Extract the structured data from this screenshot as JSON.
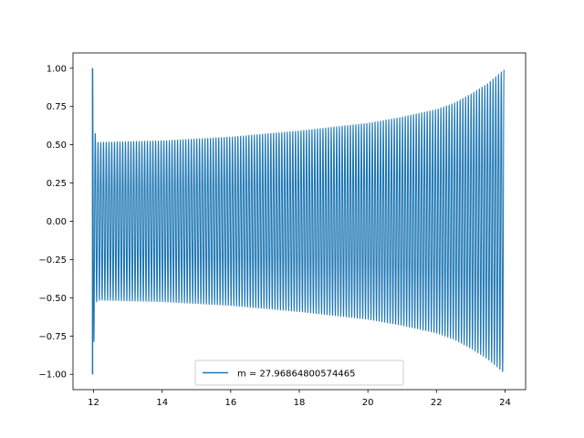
{
  "chart_data": {
    "type": "line",
    "title": "",
    "xlabel": "",
    "ylabel": "",
    "xlim": [
      11.4,
      24.6
    ],
    "ylim": [
      -1.1,
      1.1
    ],
    "x_ticks": [
      12,
      14,
      16,
      18,
      20,
      22,
      24
    ],
    "x_tick_labels": [
      "12",
      "14",
      "16",
      "18",
      "20",
      "22",
      "24"
    ],
    "y_ticks": [
      1.0,
      0.75,
      0.5,
      0.25,
      0.0,
      -0.25,
      -0.5,
      -0.75,
      -1.0
    ],
    "y_tick_labels": [
      "1.00",
      "0.75",
      "0.50",
      "0.25",
      "0.00",
      "−0.25",
      "−0.50",
      "−0.75",
      "−1.00"
    ],
    "grid": false,
    "legend_position": "bottom-center",
    "series": [
      {
        "name": "m = 27.96864800574465",
        "color": "#1f77b4",
        "x_start": 11.97,
        "x_end": 23.97,
        "oscillation_cycles": 150,
        "envelope_x": [
          11.97,
          12.05,
          12.1,
          14,
          16,
          18,
          20,
          21,
          22,
          22.5,
          23,
          23.5,
          23.97
        ],
        "envelope_y": [
          1.0,
          0.57,
          0.515,
          0.525,
          0.55,
          0.59,
          0.64,
          0.68,
          0.73,
          0.77,
          0.83,
          0.9,
          0.99
        ]
      }
    ]
  }
}
